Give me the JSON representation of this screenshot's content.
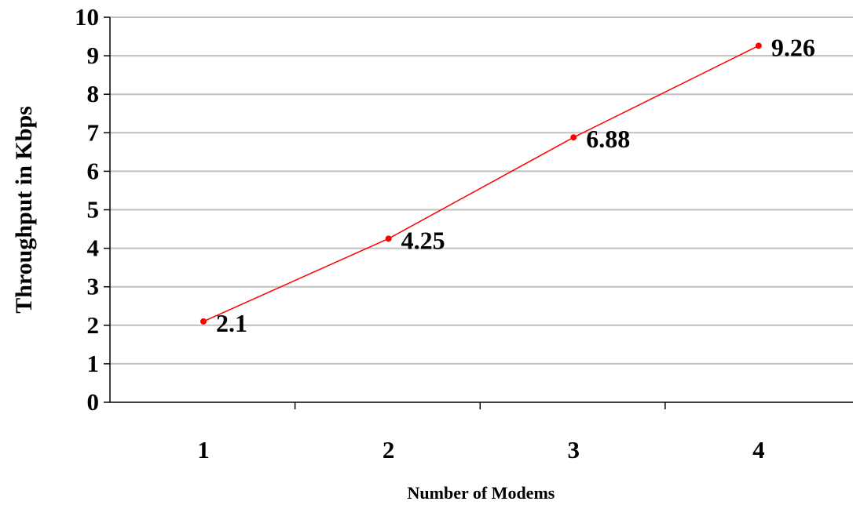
{
  "chart_data": {
    "type": "line",
    "title": "",
    "xlabel": "Number of Modems",
    "ylabel": "Throughput in Kbps",
    "categories": [
      "1",
      "2",
      "3",
      "4"
    ],
    "series": [
      {
        "values": [
          2.1,
          4.25,
          6.88,
          9.26
        ],
        "color": "#ff0000"
      }
    ],
    "data_labels": [
      "2.1",
      "4.25",
      "6.88",
      "9.26"
    ],
    "ylim": [
      0,
      10
    ],
    "yticks": [
      "0",
      "1",
      "2",
      "3",
      "4",
      "5",
      "6",
      "7",
      "8",
      "9",
      "10"
    ],
    "grid": true,
    "gridline_color": "#c0c0c0",
    "legend": "none"
  }
}
